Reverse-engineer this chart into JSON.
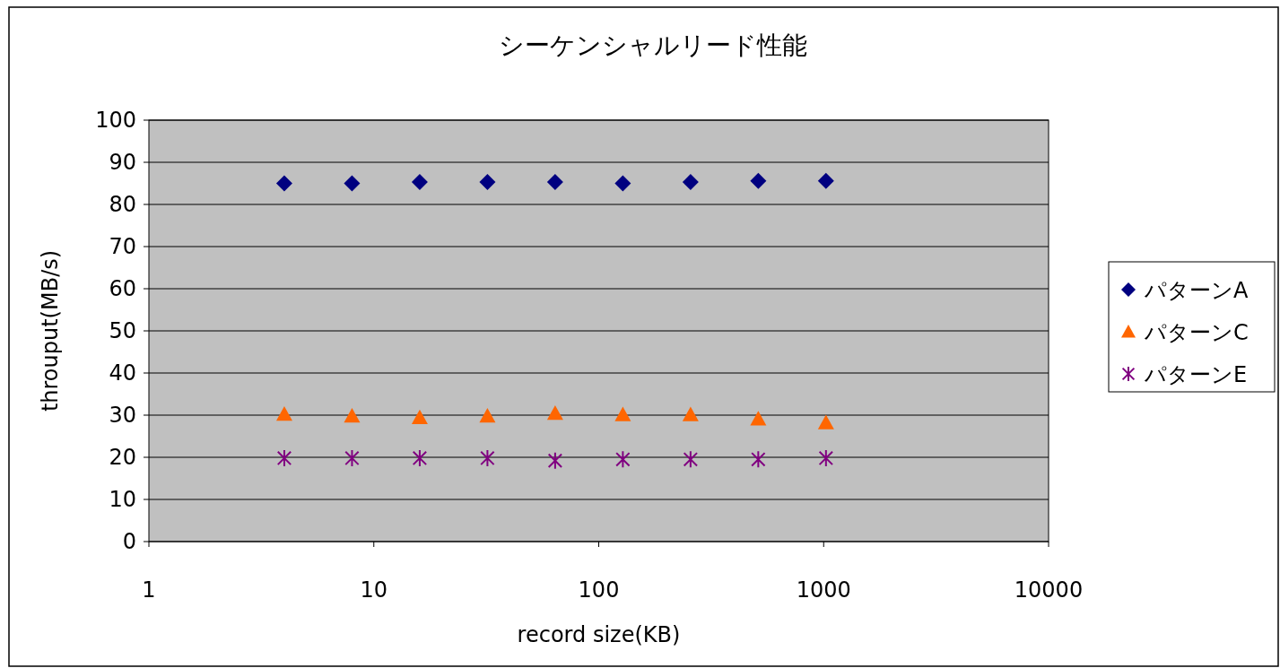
{
  "chart_data": {
    "type": "scatter",
    "title": "シーケンシャルリード性能",
    "xlabel": "record size(KB)",
    "ylabel": "throuput(MB/s)",
    "log": "x",
    "xlim": [
      1,
      10000
    ],
    "xticks": [
      1,
      10,
      100,
      1000,
      10000
    ],
    "ylim": [
      0,
      100
    ],
    "yticks": [
      0,
      10,
      20,
      30,
      40,
      50,
      60,
      70,
      80,
      90,
      100
    ],
    "grid": "y",
    "legend": "right",
    "series": [
      {
        "name": "パターンA",
        "color": "#000080",
        "marker": "diamond",
        "x": [
          4,
          8,
          16,
          32,
          64,
          128,
          256,
          512,
          1024
        ],
        "values": [
          85,
          85,
          85.3,
          85.3,
          85.3,
          85,
          85.3,
          85.6,
          85.6
        ]
      },
      {
        "name": "パターンC",
        "color": "#ff6600",
        "marker": "triangle",
        "x": [
          4,
          8,
          16,
          32,
          64,
          128,
          256,
          512,
          1024
        ],
        "values": [
          30.2,
          29.8,
          29.4,
          29.8,
          30.4,
          30.1,
          30.1,
          29.1,
          28.2
        ]
      },
      {
        "name": "パターンE",
        "color": "#800080",
        "marker": "cross",
        "x": [
          4,
          8,
          16,
          32,
          64,
          128,
          256,
          512,
          1024
        ],
        "values": [
          19.8,
          19.8,
          19.8,
          19.8,
          19.2,
          19.5,
          19.5,
          19.5,
          19.8
        ]
      }
    ]
  }
}
